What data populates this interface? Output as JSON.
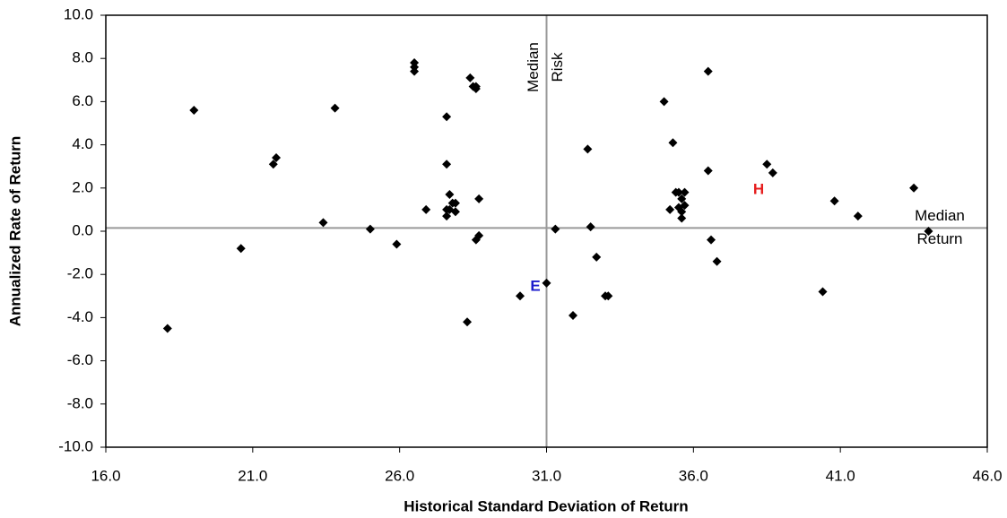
{
  "chart_data": {
    "type": "scatter",
    "x_label": "Historical Standard Deviation of Return",
    "y_label": "Annualized Rate of Return",
    "xlim": [
      16,
      46
    ],
    "ylim": [
      -10,
      10
    ],
    "xticks": [
      {
        "value": 16,
        "label": "16.0"
      },
      {
        "value": 21,
        "label": "21.0"
      },
      {
        "value": 26,
        "label": "26.0"
      },
      {
        "value": 31,
        "label": "31.0"
      },
      {
        "value": 36,
        "label": "36.0"
      },
      {
        "value": 41,
        "label": "41.0"
      },
      {
        "value": 46,
        "label": "46.0"
      }
    ],
    "yticks": [
      {
        "value": -10,
        "label": "-10.0"
      },
      {
        "value": -8,
        "label": "-8.0"
      },
      {
        "value": -6,
        "label": "-6.0"
      },
      {
        "value": -4,
        "label": "-4.0"
      },
      {
        "value": -2,
        "label": "-2.0"
      },
      {
        "value": 0,
        "label": "0.0"
      },
      {
        "value": 2,
        "label": "2.0"
      },
      {
        "value": 4,
        "label": "4.0"
      },
      {
        "value": 6,
        "label": "6.0"
      },
      {
        "value": 8,
        "label": "8.0"
      },
      {
        "value": 10,
        "label": "10.0"
      }
    ],
    "series": [
      {
        "color": "#000000",
        "x": [
          18.1,
          19.0,
          20.6,
          21.8,
          21.7,
          23.4,
          23.8,
          25.0,
          25.9,
          26.5,
          26.5,
          26.5,
          26.9,
          27.6,
          27.6,
          27.6,
          27.6,
          27.8,
          27.7,
          27.9,
          27.7,
          27.9,
          28.3,
          28.4,
          28.5,
          28.6,
          28.6,
          28.7,
          28.6,
          28.7,
          30.1,
          31.0,
          31.3,
          31.9,
          32.4,
          32.5,
          32.7,
          33.0,
          33.1,
          35.0,
          35.3,
          35.2,
          35.4,
          35.5,
          35.7,
          35.6,
          35.7,
          35.5,
          35.6,
          35.6,
          36.5,
          36.5,
          36.6,
          36.8,
          38.5,
          38.7,
          40.4,
          40.8,
          41.6,
          43.5,
          44.0
        ],
        "values": [
          -4.5,
          5.6,
          -0.8,
          3.4,
          3.1,
          0.4,
          5.7,
          0.1,
          -0.6,
          7.8,
          7.4,
          7.6,
          1.0,
          5.3,
          3.1,
          1.0,
          0.7,
          1.3,
          1.7,
          1.3,
          1.0,
          0.9,
          -4.2,
          7.1,
          6.7,
          6.6,
          6.7,
          1.5,
          -0.4,
          -0.2,
          -3.0,
          -2.4,
          0.1,
          -3.9,
          3.8,
          0.2,
          -1.2,
          -3.0,
          -3.0,
          6.0,
          4.1,
          1.0,
          1.8,
          1.8,
          1.8,
          1.5,
          1.2,
          1.1,
          0.9,
          0.6,
          7.4,
          2.8,
          -0.4,
          -1.4,
          3.1,
          2.7,
          -2.8,
          1.4,
          0.7,
          2.0,
          0.0
        ]
      }
    ],
    "median_lines": [
      {
        "axis": "x",
        "value": 31.0,
        "label": [
          "Median",
          "Risk"
        ],
        "color": "#999999"
      },
      {
        "axis": "y",
        "value": 0.15,
        "label": [
          "Median",
          "Return"
        ],
        "color": "#999999"
      }
    ],
    "annotations": [
      {
        "text": "E",
        "color": "#1a1acc"
      },
      {
        "text": "H",
        "color": "#e61e1e"
      }
    ]
  }
}
